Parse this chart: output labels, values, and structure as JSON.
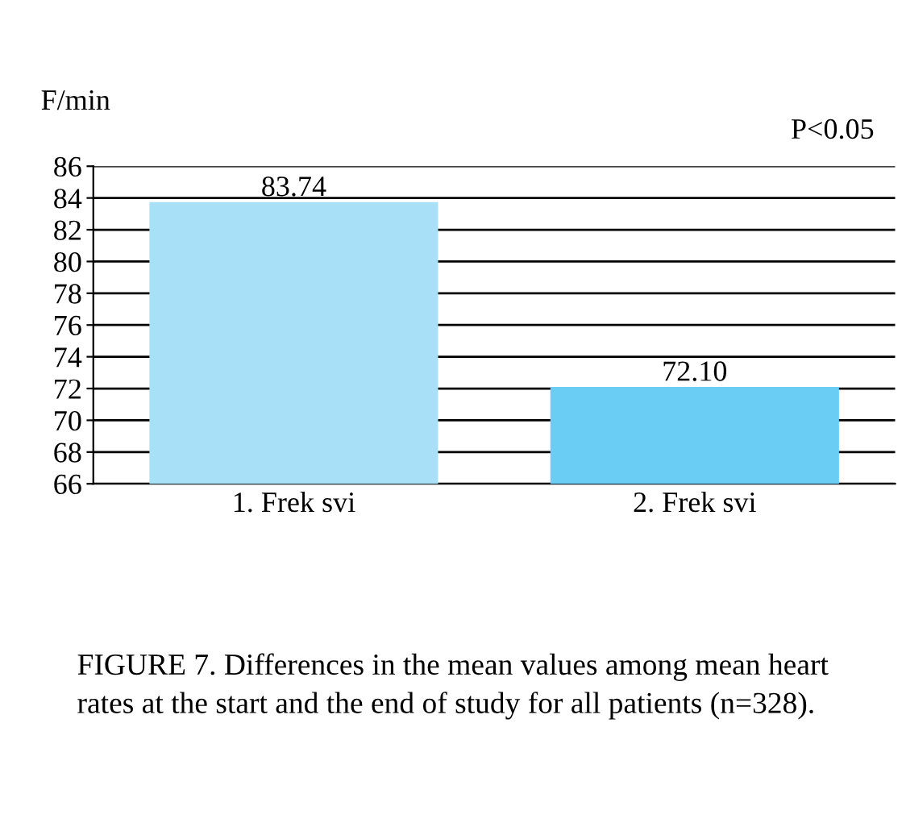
{
  "chart_data": {
    "type": "bar",
    "ylabel": "F/min",
    "categories": [
      "1. Frek svi",
      "2. Frek svi"
    ],
    "values": [
      83.74,
      72.1
    ],
    "value_labels": [
      "83.74",
      "72.10"
    ],
    "colors": [
      "#a8e0f8",
      "#6acdf4"
    ],
    "ylim": [
      66,
      86
    ],
    "yticks": [
      66,
      68,
      70,
      72,
      74,
      76,
      78,
      80,
      82,
      84,
      86
    ],
    "grid": "y",
    "legend": false,
    "annotations": [
      "P<0.05",
      "FIGURE 7. Differences in the mean values among mean heart\nrates at the start and the end of study for all patients (n=328)."
    ]
  }
}
